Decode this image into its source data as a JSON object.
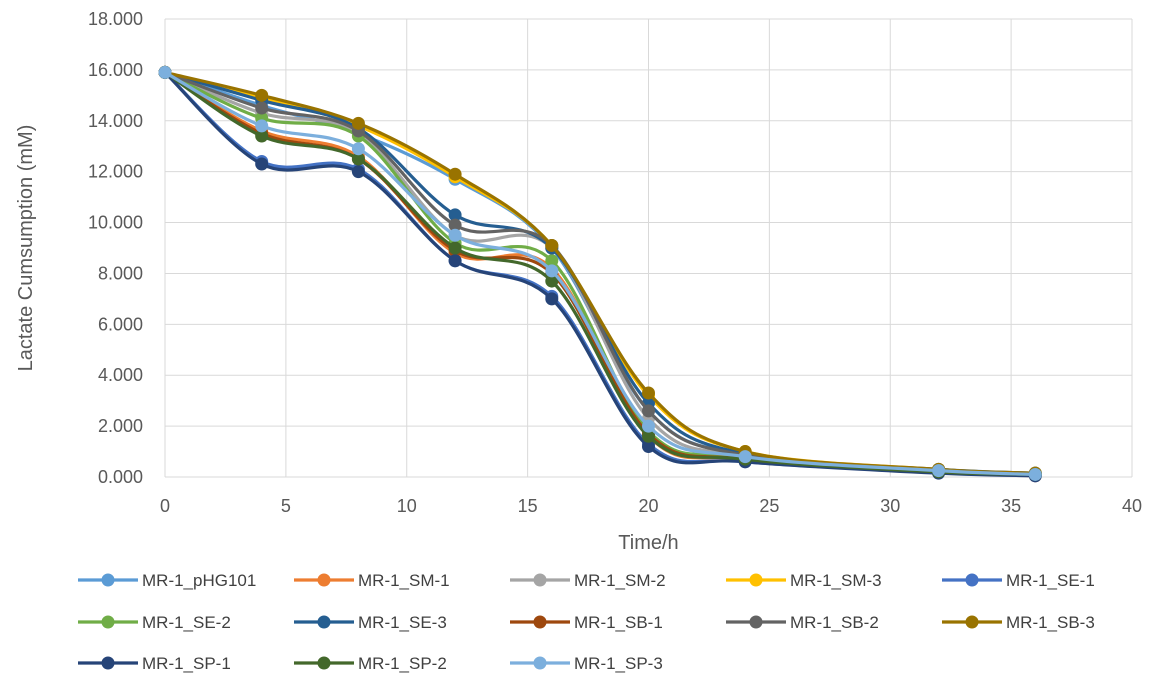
{
  "chart_data": {
    "type": "line",
    "title": "",
    "xlabel": "Time/h",
    "ylabel": "Lactate Cumsumption (mM)",
    "xlim": [
      0,
      40
    ],
    "ylim": [
      0,
      18
    ],
    "x_ticks": [
      "0",
      "5",
      "10",
      "15",
      "20",
      "25",
      "30",
      "35",
      "40"
    ],
    "y_ticks": [
      "0.000",
      "2.000",
      "4.000",
      "6.000",
      "8.000",
      "10.000",
      "12.000",
      "14.000",
      "16.000",
      "18.000"
    ],
    "grid": true,
    "smooth": true,
    "legend_position": "bottom",
    "x": [
      0,
      4,
      8,
      12,
      16,
      20,
      24,
      32,
      36
    ],
    "series": [
      {
        "name": "MR-1_pHG101",
        "color": "#5B9BD5",
        "values": [
          15.9,
          14.6,
          13.5,
          11.7,
          9.0,
          2.6,
          0.85,
          0.2,
          0.1
        ]
      },
      {
        "name": "MR-1_SM-1",
        "color": "#ED7D31",
        "values": [
          15.9,
          13.6,
          12.6,
          8.8,
          8.2,
          1.6,
          0.7,
          0.2,
          0.05
        ]
      },
      {
        "name": "MR-1_SM-2",
        "color": "#A5A5A5",
        "values": [
          15.9,
          14.3,
          13.5,
          9.5,
          9.0,
          2.3,
          0.8,
          0.25,
          0.1
        ]
      },
      {
        "name": "MR-1_SM-3",
        "color": "#FFC000",
        "values": [
          15.9,
          14.9,
          13.8,
          11.8,
          9.1,
          3.2,
          1.0,
          0.3,
          0.15
        ]
      },
      {
        "name": "MR-1_SE-1",
        "color": "#4472C4",
        "values": [
          15.9,
          12.4,
          12.1,
          8.5,
          7.1,
          1.3,
          0.6,
          0.2,
          0.05
        ]
      },
      {
        "name": "MR-1_SE-2",
        "color": "#70AD47",
        "values": [
          15.9,
          14.1,
          13.4,
          9.2,
          8.5,
          1.8,
          0.8,
          0.25,
          0.1
        ]
      },
      {
        "name": "MR-1_SE-3",
        "color": "#255E91",
        "values": [
          15.9,
          14.8,
          13.7,
          10.3,
          9.0,
          2.9,
          0.9,
          0.3,
          0.15
        ]
      },
      {
        "name": "MR-1_SB-1",
        "color": "#9E480E",
        "values": [
          15.9,
          13.5,
          12.5,
          8.9,
          8.0,
          1.7,
          0.7,
          0.2,
          0.1
        ]
      },
      {
        "name": "MR-1_SB-2",
        "color": "#636363",
        "values": [
          15.9,
          14.5,
          13.6,
          9.9,
          9.1,
          2.6,
          0.85,
          0.25,
          0.1
        ]
      },
      {
        "name": "MR-1_SB-3",
        "color": "#997300",
        "values": [
          15.9,
          15.0,
          13.9,
          11.9,
          9.1,
          3.3,
          1.0,
          0.3,
          0.15
        ]
      },
      {
        "name": "MR-1_SP-1",
        "color": "#264478",
        "values": [
          15.9,
          12.3,
          12.0,
          8.5,
          7.0,
          1.2,
          0.6,
          0.15,
          0.05
        ]
      },
      {
        "name": "MR-1_SP-2",
        "color": "#43682B",
        "values": [
          15.9,
          13.4,
          12.5,
          9.0,
          7.7,
          1.6,
          0.7,
          0.2,
          0.1
        ]
      },
      {
        "name": "MR-1_SP-3",
        "color": "#7CAFDD",
        "values": [
          15.9,
          13.8,
          12.9,
          9.5,
          8.1,
          2.0,
          0.8,
          0.25,
          0.1
        ]
      }
    ]
  }
}
